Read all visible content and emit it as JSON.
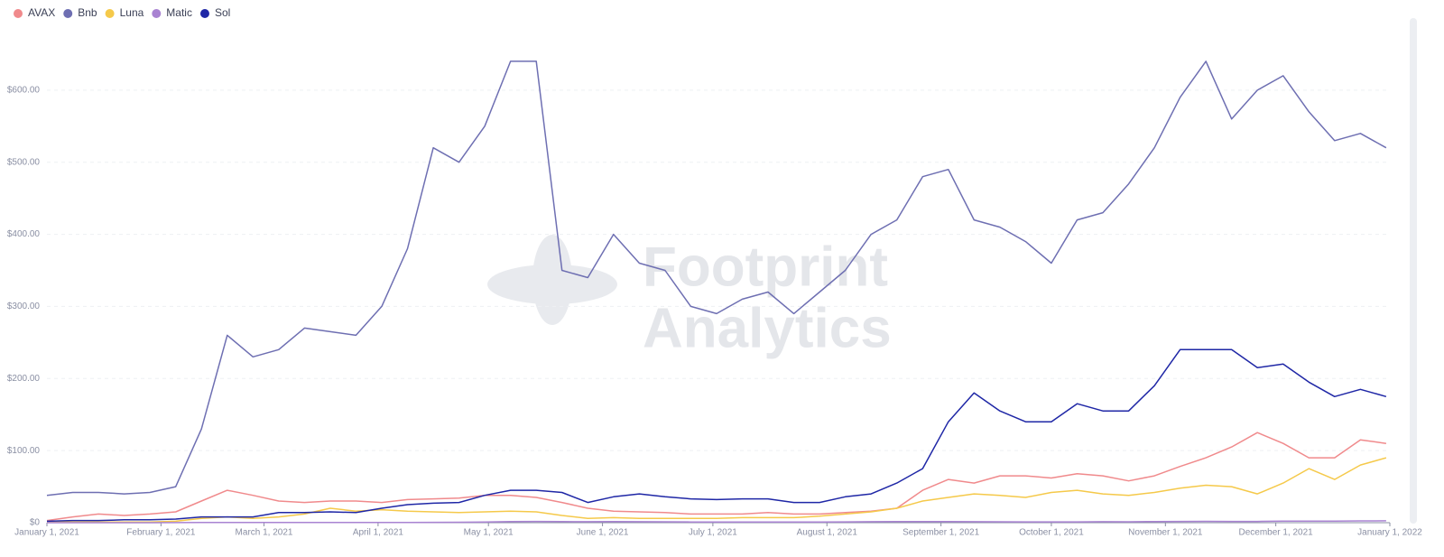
{
  "chart_data": {
    "type": "line",
    "watermark": [
      "Footprint",
      "Analytics"
    ],
    "x": [
      "2021-01-01",
      "2021-01-08",
      "2021-01-15",
      "2021-01-22",
      "2021-01-29",
      "2021-02-05",
      "2021-02-12",
      "2021-02-19",
      "2021-02-26",
      "2021-03-05",
      "2021-03-12",
      "2021-03-19",
      "2021-03-26",
      "2021-04-02",
      "2021-04-09",
      "2021-04-16",
      "2021-04-23",
      "2021-04-30",
      "2021-05-07",
      "2021-05-14",
      "2021-05-21",
      "2021-05-28",
      "2021-06-04",
      "2021-06-11",
      "2021-06-18",
      "2021-06-25",
      "2021-07-02",
      "2021-07-09",
      "2021-07-16",
      "2021-07-23",
      "2021-07-30",
      "2021-08-06",
      "2021-08-13",
      "2021-08-20",
      "2021-08-27",
      "2021-09-03",
      "2021-09-10",
      "2021-09-17",
      "2021-09-24",
      "2021-10-01",
      "2021-10-08",
      "2021-10-15",
      "2021-10-22",
      "2021-10-29",
      "2021-11-05",
      "2021-11-12",
      "2021-11-19",
      "2021-11-26",
      "2021-12-03",
      "2021-12-10",
      "2021-12-17",
      "2021-12-24",
      "2021-12-31"
    ],
    "series": [
      {
        "name": "AVAX",
        "color": "#f08a8c",
        "values": [
          3,
          8,
          12,
          10,
          12,
          15,
          30,
          45,
          38,
          30,
          28,
          30,
          30,
          28,
          32,
          33,
          34,
          38,
          38,
          35,
          28,
          20,
          16,
          15,
          14,
          12,
          12,
          12,
          14,
          12,
          12,
          14,
          16,
          20,
          45,
          60,
          55,
          65,
          65,
          62,
          68,
          65,
          58,
          65,
          78,
          90,
          105,
          125,
          110,
          90,
          90,
          115,
          110
        ]
      },
      {
        "name": "Bnb",
        "color": "#6e6fb2",
        "values": [
          38,
          42,
          42,
          40,
          42,
          50,
          130,
          260,
          230,
          240,
          270,
          265,
          260,
          300,
          380,
          520,
          500,
          550,
          640,
          640,
          350,
          340,
          400,
          360,
          350,
          300,
          290,
          310,
          320,
          290,
          320,
          350,
          400,
          420,
          480,
          490,
          420,
          410,
          390,
          360,
          420,
          430,
          470,
          520,
          590,
          640,
          560,
          600,
          620,
          570,
          530,
          540,
          520
        ]
      },
      {
        "name": "Luna",
        "color": "#f5c94a",
        "values": [
          1,
          1,
          1,
          1,
          1,
          2,
          6,
          8,
          6,
          8,
          12,
          20,
          16,
          18,
          16,
          15,
          14,
          15,
          16,
          15,
          10,
          6,
          7,
          6,
          6,
          6,
          6,
          7,
          7,
          7,
          9,
          12,
          15,
          20,
          30,
          35,
          40,
          38,
          35,
          42,
          45,
          40,
          38,
          42,
          48,
          52,
          50,
          40,
          55,
          75,
          60,
          80,
          90
        ]
      },
      {
        "name": "Matic",
        "color": "#a983d2",
        "values": [
          0.02,
          0.02,
          0.03,
          0.04,
          0.04,
          0.1,
          0.4,
          0.3,
          0.3,
          0.35,
          0.4,
          0.35,
          0.3,
          0.35,
          0.4,
          0.45,
          0.6,
          0.9,
          1.5,
          1.7,
          1.5,
          1.4,
          1.5,
          1.4,
          1.2,
          1,
          1,
          1,
          0.9,
          0.9,
          1,
          1.1,
          1.4,
          1.6,
          1.5,
          1.6,
          1.4,
          1.2,
          1.1,
          1.1,
          1.1,
          1.4,
          1.3,
          1.6,
          1.8,
          1.9,
          1.8,
          1.7,
          2.2,
          2.2,
          2.1,
          2.5,
          2.6
        ]
      },
      {
        "name": "Sol",
        "color": "#1f27a6",
        "values": [
          2,
          3,
          3,
          4,
          4,
          5,
          8,
          8,
          8,
          14,
          14,
          15,
          14,
          20,
          25,
          27,
          28,
          38,
          45,
          45,
          42,
          28,
          36,
          40,
          36,
          33,
          32,
          33,
          33,
          28,
          28,
          36,
          40,
          55,
          75,
          140,
          180,
          155,
          140,
          140,
          165,
          155,
          155,
          190,
          240,
          240,
          240,
          215,
          220,
          195,
          175,
          185,
          175
        ]
      }
    ],
    "xlim": [
      "2021-01-01",
      "2022-01-01"
    ],
    "xticks": [
      {
        "value": "2021-01-01",
        "label": "January 1, 2021"
      },
      {
        "value": "2021-02-01",
        "label": "February 1, 2021"
      },
      {
        "value": "2021-03-01",
        "label": "March 1, 2021"
      },
      {
        "value": "2021-04-01",
        "label": "April 1, 2021"
      },
      {
        "value": "2021-05-01",
        "label": "May 1, 2021"
      },
      {
        "value": "2021-06-01",
        "label": "June 1, 2021"
      },
      {
        "value": "2021-07-01",
        "label": "July 1, 2021"
      },
      {
        "value": "2021-08-01",
        "label": "August 1, 2021"
      },
      {
        "value": "2021-09-01",
        "label": "September 1, 2021"
      },
      {
        "value": "2021-10-01",
        "label": "October 1, 2021"
      },
      {
        "value": "2021-11-01",
        "label": "November 1, 2021"
      },
      {
        "value": "2021-12-01",
        "label": "December 1, 2021"
      },
      {
        "value": "2022-01-01",
        "label": "January 1, 2022"
      }
    ],
    "ylim": [
      0,
      700
    ],
    "yticks": [
      {
        "value": 0,
        "label": "$0"
      },
      {
        "value": 100,
        "label": "$100.00"
      },
      {
        "value": 200,
        "label": "$200.00"
      },
      {
        "value": 300,
        "label": "$300.00"
      },
      {
        "value": 400,
        "label": "$400.00"
      },
      {
        "value": 500,
        "label": "$500.00"
      },
      {
        "value": 600,
        "label": "$600.00"
      }
    ],
    "grid": true,
    "legend": "top-left"
  }
}
